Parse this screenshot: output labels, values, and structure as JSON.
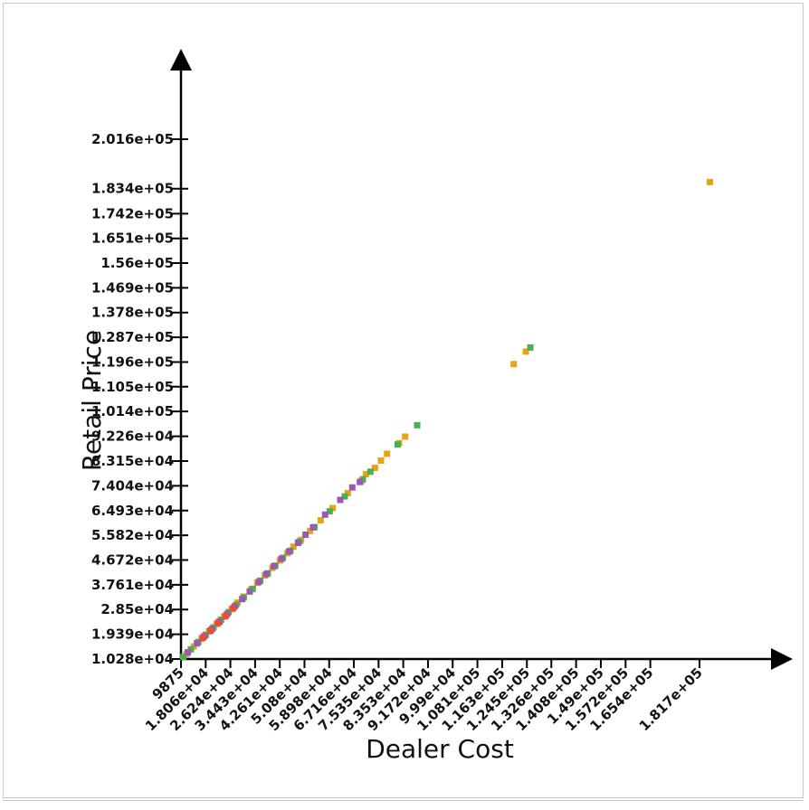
{
  "chart_data": {
    "type": "scatter",
    "title": "",
    "xlabel": "Dealer Cost",
    "ylabel": "Retail Price",
    "xlim": [
      9875,
      181700
    ],
    "ylim": [
      10280,
      201600
    ],
    "x_ticks": [
      9875,
      18060,
      26240,
      34430,
      42610,
      50800,
      58980,
      67160,
      75350,
      83530,
      91720,
      99900,
      108100,
      116300,
      124500,
      132600,
      140800,
      149000,
      157200,
      165400,
      181700
    ],
    "x_tick_labels": [
      "9875",
      "1.806e+04",
      "2.624e+04",
      "3.443e+04",
      "4.261e+04",
      "5.08e+04",
      "5.898e+04",
      "6.716e+04",
      "7.535e+04",
      "8.353e+04",
      "9.172e+04",
      "9.99e+04",
      "1.081e+05",
      "1.163e+05",
      "1.245e+05",
      "1.326e+05",
      "1.408e+05",
      "1.49e+05",
      "1.572e+05",
      "1.654e+05",
      "1.817e+05"
    ],
    "y_ticks": [
      10280,
      19390,
      28500,
      37610,
      46720,
      55820,
      64930,
      74040,
      83150,
      92260,
      101400,
      110500,
      119600,
      128700,
      137800,
      146900,
      156000,
      165100,
      174200,
      183400,
      201600
    ],
    "y_tick_labels": [
      "1.028e+04",
      "1.939e+04",
      "2.85e+04",
      "3.761e+04",
      "4.672e+04",
      "5.582e+04",
      "6.493e+04",
      "7.404e+04",
      "8.315e+04",
      "9.226e+04",
      "1.014e+05",
      "1.105e+05",
      "1.196e+05",
      "1.287e+05",
      "1.378e+05",
      "1.469e+05",
      "1.56e+05",
      "1.651e+05",
      "1.742e+05",
      "1.834e+05",
      "2.016e+05"
    ],
    "grid": false,
    "legend": "none",
    "series": [
      {
        "color": "#e8a317",
        "points": [
          [
            11500,
            12200
          ],
          [
            14000,
            15100
          ],
          [
            16500,
            17900
          ],
          [
            19000,
            20600
          ],
          [
            21500,
            23300
          ],
          [
            24000,
            26000
          ],
          [
            26500,
            28800
          ],
          [
            28500,
            31200
          ],
          [
            30500,
            33400
          ],
          [
            33000,
            36100
          ],
          [
            35000,
            38500
          ],
          [
            37500,
            41200
          ],
          [
            40000,
            44000
          ],
          [
            42500,
            46700
          ],
          [
            45000,
            49400
          ],
          [
            47000,
            51800
          ],
          [
            49500,
            54300
          ],
          [
            52500,
            57600
          ],
          [
            56000,
            61500
          ],
          [
            60000,
            66000
          ],
          [
            65000,
            71500
          ],
          [
            69500,
            76000
          ],
          [
            71000,
            78500
          ],
          [
            74000,
            80800
          ],
          [
            76000,
            83500
          ],
          [
            78000,
            86000
          ],
          [
            82000,
            89900
          ],
          [
            84000,
            92300
          ],
          [
            120000,
            119000
          ],
          [
            124000,
            123600
          ],
          [
            185000,
            186000
          ]
        ]
      },
      {
        "color": "#4caf50",
        "points": [
          [
            10500,
            11200
          ],
          [
            13000,
            14000
          ],
          [
            15500,
            16700
          ],
          [
            18000,
            19400
          ],
          [
            20500,
            22100
          ],
          [
            23000,
            24900
          ],
          [
            25500,
            27700
          ],
          [
            28000,
            30400
          ],
          [
            30500,
            33100
          ],
          [
            33500,
            36300
          ],
          [
            36000,
            39300
          ],
          [
            38500,
            42000
          ],
          [
            41000,
            44800
          ],
          [
            43500,
            47700
          ],
          [
            46000,
            50300
          ],
          [
            49000,
            53700
          ],
          [
            54000,
            59000
          ],
          [
            59000,
            64800
          ],
          [
            64000,
            70300
          ],
          [
            70000,
            76600
          ],
          [
            72500,
            79400
          ],
          [
            81500,
            89400
          ],
          [
            88000,
            96500
          ],
          [
            125500,
            125100
          ]
        ]
      },
      {
        "color": "#9b59b6",
        "points": [
          [
            12000,
            12900
          ],
          [
            15000,
            16200
          ],
          [
            17500,
            18900
          ],
          [
            20000,
            21500
          ],
          [
            22500,
            24200
          ],
          [
            25000,
            27000
          ],
          [
            27500,
            29800
          ],
          [
            30000,
            32500
          ],
          [
            32500,
            35300
          ],
          [
            35500,
            38800
          ],
          [
            38000,
            41700
          ],
          [
            40500,
            44600
          ],
          [
            43000,
            47300
          ],
          [
            45500,
            50000
          ],
          [
            48500,
            53200
          ],
          [
            51000,
            56200
          ],
          [
            53500,
            58900
          ],
          [
            57500,
            63600
          ],
          [
            62500,
            69000
          ],
          [
            66500,
            73600
          ],
          [
            69000,
            75600
          ]
        ]
      },
      {
        "color": "#e74c3c",
        "points": [
          [
            17000,
            18300
          ],
          [
            19500,
            20900
          ],
          [
            22000,
            23700
          ],
          [
            24500,
            26300
          ],
          [
            27000,
            29100
          ]
        ]
      }
    ]
  }
}
